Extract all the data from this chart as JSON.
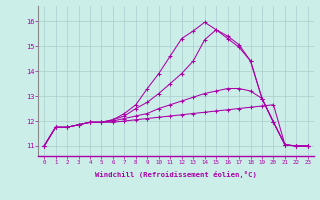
{
  "xlabel": "Windchill (Refroidissement éolien,°C)",
  "bg_color": "#cceee8",
  "line_color": "#aa00aa",
  "grid_color": "#aacccc",
  "x_ticks": [
    0,
    1,
    2,
    3,
    4,
    5,
    6,
    7,
    8,
    9,
    10,
    11,
    12,
    13,
    14,
    15,
    16,
    17,
    18,
    19,
    20,
    21,
    22,
    23
  ],
  "y_ticks": [
    11,
    12,
    13,
    14,
    15,
    16
  ],
  "xlim": [
    -0.5,
    23.5
  ],
  "ylim": [
    10.6,
    16.6
  ],
  "lines": [
    [
      11.0,
      11.75,
      11.75,
      11.85,
      11.95,
      11.95,
      11.95,
      12.0,
      12.05,
      12.1,
      12.15,
      12.2,
      12.25,
      12.3,
      12.35,
      12.4,
      12.45,
      12.5,
      12.55,
      12.6,
      12.65,
      11.05,
      11.0,
      11.0
    ],
    [
      11.0,
      11.75,
      11.75,
      11.85,
      11.95,
      11.95,
      12.0,
      12.1,
      12.2,
      12.3,
      12.5,
      12.65,
      12.8,
      12.95,
      13.1,
      13.2,
      13.3,
      13.3,
      13.2,
      12.9,
      11.95,
      11.05,
      11.0,
      11.0
    ],
    [
      11.0,
      11.75,
      11.75,
      11.85,
      11.95,
      11.95,
      12.05,
      12.2,
      12.5,
      12.75,
      13.1,
      13.5,
      13.9,
      14.4,
      15.25,
      15.65,
      15.3,
      14.95,
      14.4,
      12.9,
      11.95,
      11.05,
      11.0,
      11.0
    ],
    [
      11.0,
      11.75,
      11.75,
      11.85,
      11.95,
      11.95,
      12.05,
      12.3,
      12.65,
      13.3,
      13.9,
      14.6,
      15.3,
      15.6,
      15.95,
      15.65,
      15.4,
      15.05,
      14.4,
      12.9,
      11.95,
      11.05,
      11.0,
      11.0
    ]
  ]
}
